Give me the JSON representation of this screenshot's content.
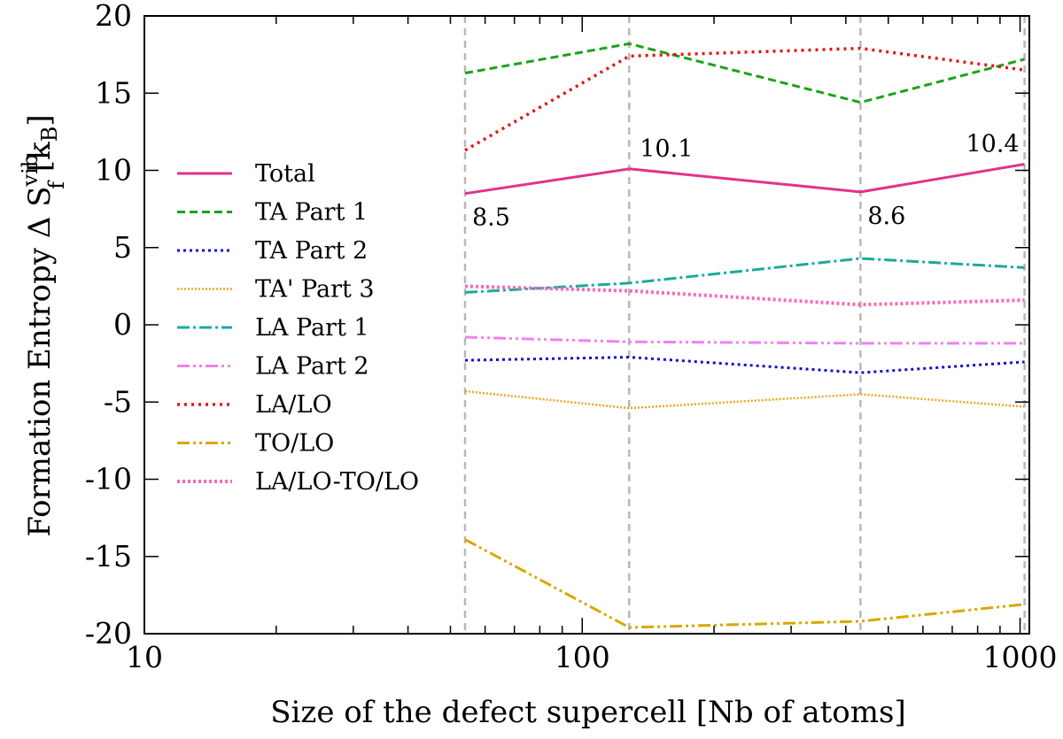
{
  "chart_data": {
    "type": "line",
    "x_scale": "log",
    "xlim": [
      10,
      1050
    ],
    "ylim": [
      -20,
      20
    ],
    "x_ticks": [
      10,
      100,
      1000
    ],
    "x_tick_labels": [
      "10",
      "100",
      "1000"
    ],
    "y_ticks": [
      20,
      15,
      10,
      5,
      0,
      -5,
      -10,
      -15,
      -20
    ],
    "y_tick_labels": [
      "20",
      "15",
      "10",
      "5",
      "0",
      "-5",
      "-10",
      "-15",
      "-20"
    ],
    "xlabel": "Size of the defect supercell [Nb of atoms]",
    "ylabel": {
      "main": "Formation Entropy Δ S",
      "superscript": "vib",
      "subscript": "f",
      "unit_open": " [k",
      "unit_sub": "B",
      "unit_close": "]"
    },
    "grid": false,
    "legend_position": "left-center",
    "reference_lines_x": [
      54,
      128,
      432,
      1024
    ],
    "x": [
      54,
      128,
      432,
      1024
    ],
    "series": [
      {
        "name": "Total",
        "values": [
          8.5,
          10.1,
          8.6,
          10.4
        ],
        "color": "#e0338a",
        "dash": "solid",
        "width": 3
      },
      {
        "name": "TA Part 1",
        "values": [
          16.3,
          18.2,
          14.4,
          17.2
        ],
        "color": "#1aa31a",
        "dash": "9,5",
        "width": 3
      },
      {
        "name": "TA Part 2",
        "values": [
          -2.3,
          -2.1,
          -3.1,
          -2.4
        ],
        "color": "#1010cc",
        "dash": "3,4",
        "width": 3
      },
      {
        "name": "TA' Part 3",
        "values": [
          -4.3,
          -5.4,
          -4.5,
          -5.3
        ],
        "color": "#f0a51e",
        "dash": "2,2",
        "width": 2.5
      },
      {
        "name": "LA Part 1",
        "values": [
          2.1,
          2.7,
          4.3,
          3.7
        ],
        "color": "#1aaaa0",
        "dash": "14,4,3,4",
        "width": 3
      },
      {
        "name": "LA Part 2",
        "values": [
          -0.8,
          -1.1,
          -1.2,
          -1.2
        ],
        "color": "#ee82ee",
        "dash": "14,4,3,4,3,4",
        "width": 3
      },
      {
        "name": "LA/LO",
        "values": [
          11.3,
          17.4,
          17.9,
          16.5
        ],
        "color": "#e81515",
        "dash": "3,5",
        "width": 3.5
      },
      {
        "name": "TO/LO",
        "values": [
          -13.9,
          -19.6,
          -19.2,
          -18.1
        ],
        "color": "#d9a700",
        "dash": "14,4,3,4,3,4",
        "width": 3
      },
      {
        "name": "LA/LO-TO/LO",
        "values": [
          2.5,
          2.2,
          1.3,
          1.6
        ],
        "color": "#f46bb8",
        "dash": "3,3",
        "width": 4
      }
    ],
    "annotations": [
      {
        "text": "8.5",
        "x": 54,
        "y": 8.5,
        "placement": "below-right"
      },
      {
        "text": "10.1",
        "x": 128,
        "y": 10.1,
        "placement": "above-right"
      },
      {
        "text": "8.6",
        "x": 432,
        "y": 8.6,
        "placement": "below-right"
      },
      {
        "text": "10.4",
        "x": 1024,
        "y": 10.4,
        "placement": "above-left"
      }
    ]
  }
}
